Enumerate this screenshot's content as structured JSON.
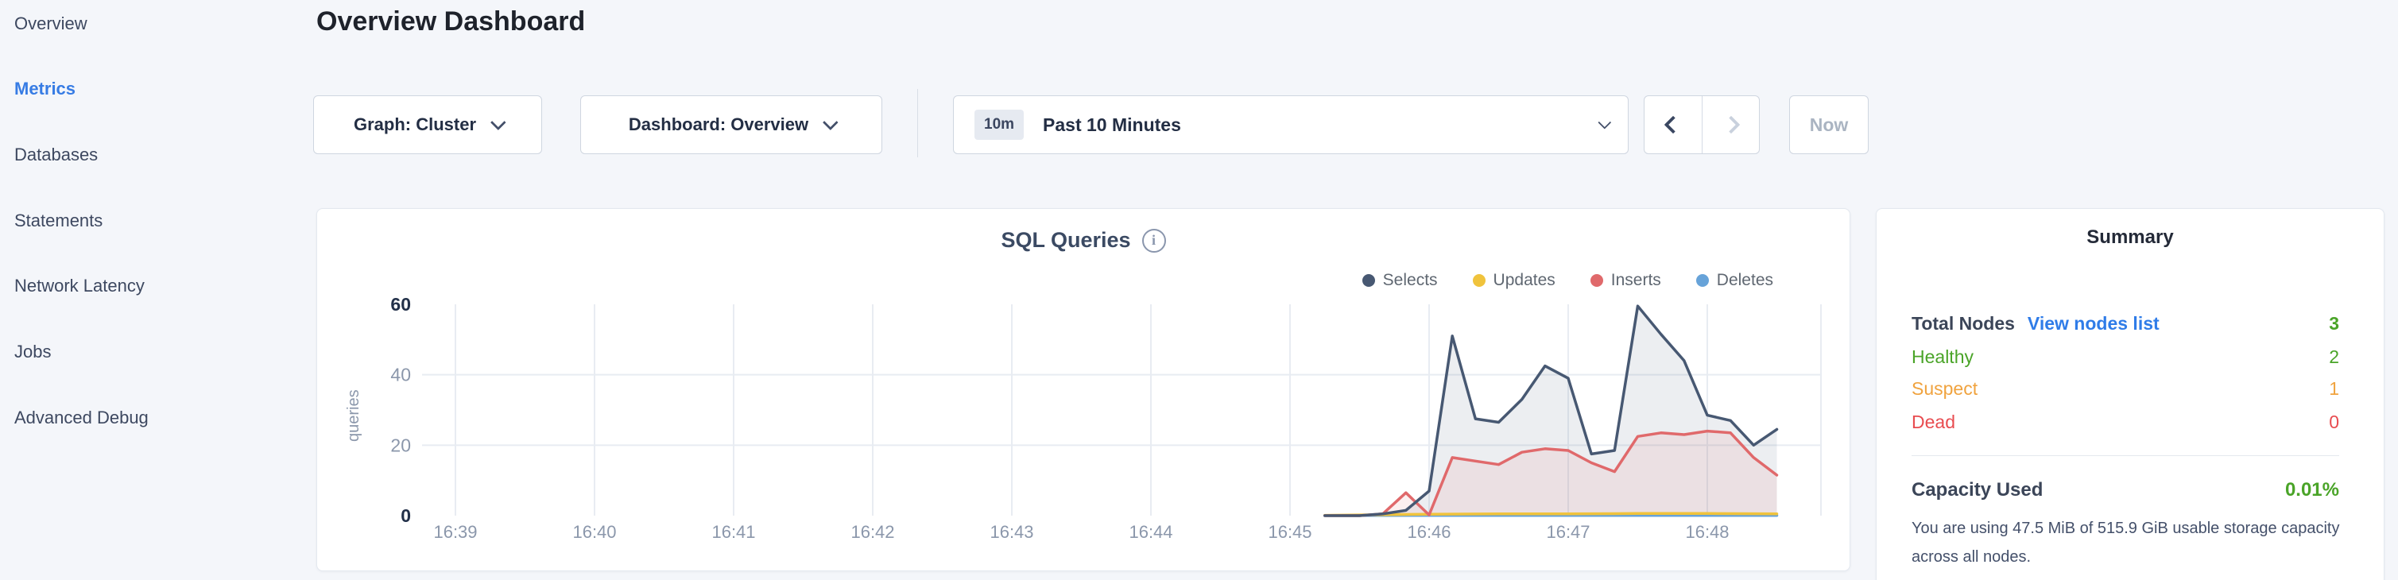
{
  "sidebar": {
    "items": [
      {
        "label": "Overview",
        "active": false
      },
      {
        "label": "Metrics",
        "active": true
      },
      {
        "label": "Databases",
        "active": false
      },
      {
        "label": "Statements",
        "active": false
      },
      {
        "label": "Network Latency",
        "active": false
      },
      {
        "label": "Jobs",
        "active": false
      },
      {
        "label": "Advanced Debug",
        "active": false
      }
    ]
  },
  "header": {
    "title": "Overview Dashboard"
  },
  "controls": {
    "graph_dropdown": "Graph: Cluster",
    "dashboard_dropdown": "Dashboard: Overview",
    "time_window": {
      "badge": "10m",
      "label": "Past 10 Minutes"
    },
    "now_button": "Now"
  },
  "chart_data": {
    "type": "area",
    "title": "SQL Queries",
    "ylabel": "queries",
    "ylim": [
      0,
      60
    ],
    "yticks": [
      0,
      20,
      40,
      60
    ],
    "grid": true,
    "legend_position": "top-right",
    "x_ticks": [
      "16:39",
      "16:40",
      "16:41",
      "16:42",
      "16:43",
      "16:44",
      "16:45",
      "16:46",
      "16:47",
      "16:48"
    ],
    "series": [
      {
        "name": "Selects",
        "color": "#475872",
        "fill": "rgba(71,88,114,0.10)",
        "points": [
          [
            "16:45:15",
            0
          ],
          [
            "16:45:30",
            0
          ],
          [
            "16:45:40",
            0.5
          ],
          [
            "16:45:50",
            1.5
          ],
          [
            "16:46:00",
            7
          ],
          [
            "16:46:10",
            51
          ],
          [
            "16:46:20",
            27.5
          ],
          [
            "16:46:30",
            26.5
          ],
          [
            "16:46:40",
            33
          ],
          [
            "16:46:50",
            42.5
          ],
          [
            "16:47:00",
            39
          ],
          [
            "16:47:10",
            17.5
          ],
          [
            "16:47:20",
            18.5
          ],
          [
            "16:47:30",
            59.5
          ],
          [
            "16:47:40",
            51.5
          ],
          [
            "16:47:50",
            44
          ],
          [
            "16:48:00",
            28.5
          ],
          [
            "16:48:10",
            27
          ],
          [
            "16:48:20",
            20
          ],
          [
            "16:48:30",
            24.5
          ]
        ]
      },
      {
        "name": "Updates",
        "color": "#f0c33c",
        "fill": "rgba(240,195,60,0.10)",
        "points": [
          [
            "16:45:15",
            0.1
          ],
          [
            "16:46:00",
            0.4
          ],
          [
            "16:46:30",
            0.5
          ],
          [
            "16:47:00",
            0.5
          ],
          [
            "16:47:30",
            0.6
          ],
          [
            "16:48:00",
            0.6
          ],
          [
            "16:48:30",
            0.5
          ]
        ]
      },
      {
        "name": "Inserts",
        "color": "#e0696b",
        "fill": "rgba(224,105,107,0.10)",
        "points": [
          [
            "16:45:15",
            0
          ],
          [
            "16:45:30",
            0
          ],
          [
            "16:45:40",
            0.5
          ],
          [
            "16:45:50",
            6.5
          ],
          [
            "16:46:00",
            0.2
          ],
          [
            "16:46:10",
            16.5
          ],
          [
            "16:46:20",
            15.5
          ],
          [
            "16:46:30",
            14.5
          ],
          [
            "16:46:40",
            18
          ],
          [
            "16:46:50",
            19
          ],
          [
            "16:47:00",
            18.5
          ],
          [
            "16:47:10",
            15
          ],
          [
            "16:47:20",
            12.5
          ],
          [
            "16:47:30",
            22.5
          ],
          [
            "16:47:40",
            23.5
          ],
          [
            "16:47:50",
            23
          ],
          [
            "16:48:00",
            24
          ],
          [
            "16:48:10",
            23.5
          ],
          [
            "16:48:20",
            16.5
          ],
          [
            "16:48:30",
            11.5
          ]
        ]
      },
      {
        "name": "Deletes",
        "color": "#67a3d9",
        "fill": "rgba(103,163,217,0.10)",
        "points": [
          [
            "16:45:15",
            0.05
          ],
          [
            "16:46:30",
            0.05
          ],
          [
            "16:47:30",
            0.05
          ],
          [
            "16:48:30",
            0.05
          ]
        ]
      }
    ]
  },
  "summary": {
    "title": "Summary",
    "rows": [
      {
        "label": "Total Nodes",
        "link": "View nodes list",
        "value": "3",
        "color": "#4aa428",
        "label_color": "#3b4558"
      },
      {
        "label": "Healthy",
        "value": "2",
        "color": "#4aa428",
        "label_color": "#4aa428"
      },
      {
        "label": "Suspect",
        "value": "1",
        "color": "#f0a33f",
        "label_color": "#f0a33f"
      },
      {
        "label": "Dead",
        "value": "0",
        "color": "#e84c50",
        "label_color": "#e84c50"
      }
    ],
    "capacity": {
      "label": "Capacity Used",
      "value": "0.01%",
      "description": "You are using 47.5 MiB of 515.9 GiB usable storage capacity across all nodes."
    }
  },
  "colors": {
    "page_background": "#f4f6fa",
    "accent_blue": "#377ce4",
    "link_blue": "#2f7ce8",
    "green": "#4aa428",
    "orange": "#f0a33f",
    "red": "#e84c50",
    "grid": "#e8ecf2",
    "tick_major": "#223049",
    "tick_minor": "#8b97ab"
  }
}
